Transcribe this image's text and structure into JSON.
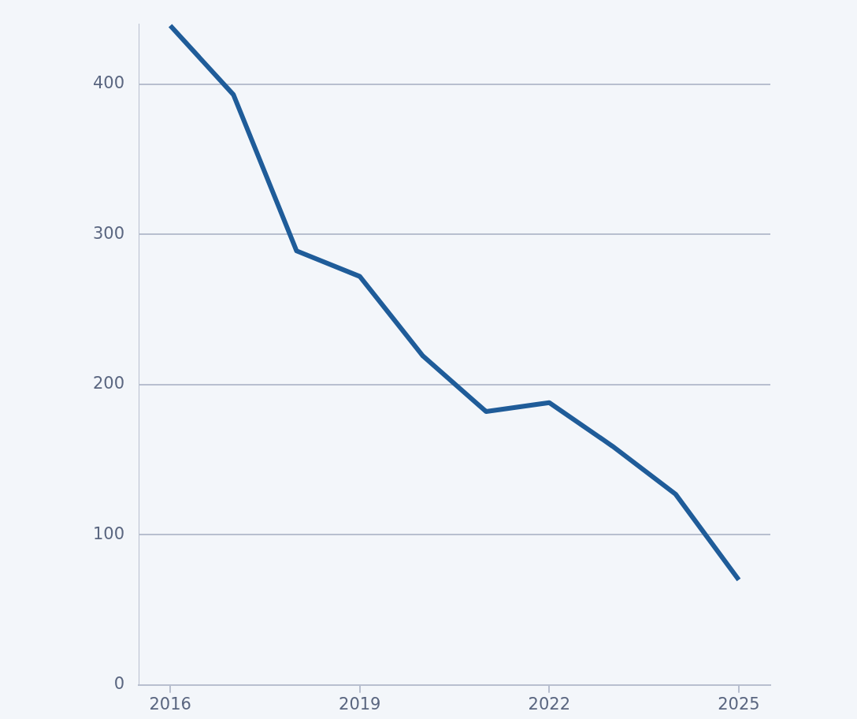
{
  "chart_data": {
    "type": "line",
    "x": [
      2016,
      2017,
      2018,
      2019,
      2020,
      2021,
      2022,
      2023,
      2024,
      2025
    ],
    "series": [
      {
        "color": "#1f5c99",
        "values": [
          439,
          393,
          289,
          272,
          219,
          182,
          188,
          159,
          127,
          70
        ]
      }
    ],
    "xlim": [
      2015.5,
      2025.5
    ],
    "xticks": [
      2016,
      2019,
      2022,
      2025
    ],
    "ylim": [
      0,
      440
    ],
    "yticks": [
      0,
      100,
      200,
      300,
      400
    ],
    "grid": "y",
    "legend": false,
    "marker": "none",
    "line_style": "solid"
  }
}
